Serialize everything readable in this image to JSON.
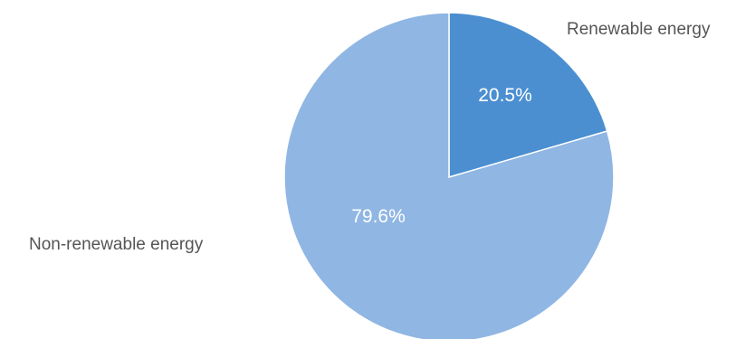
{
  "chart_data": {
    "type": "pie",
    "title": "",
    "slices": [
      {
        "label": "Renewable energy",
        "value": 20.5,
        "value_label": "20.5%",
        "color": "#4b8fd1"
      },
      {
        "label": "Non-renewable energy",
        "value": 79.6,
        "value_label": "79.6%",
        "color": "#90b6e3"
      }
    ],
    "start_angle": "12 o'clock",
    "direction": "clockwise",
    "slice_border_color": "#ffffff"
  }
}
